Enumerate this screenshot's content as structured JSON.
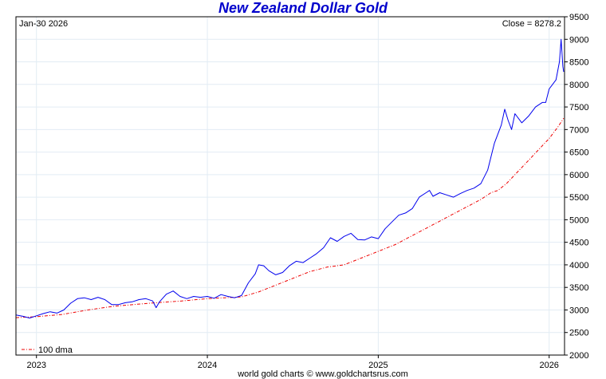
{
  "chart_data": {
    "type": "line",
    "title": "New Zealand Dollar Gold",
    "date_label": "Jan-30  2026",
    "close_label": "Close = 8278.2",
    "credit": "world gold charts © www.goldchartsrus.com",
    "legend_label": "100 dma",
    "legend_position": "bottom-left",
    "grid": true,
    "ylim": [
      2000,
      9500
    ],
    "xlim": [
      2022.88,
      2026.09
    ],
    "y_ticks": [
      2000,
      2500,
      3000,
      3500,
      4000,
      4500,
      5000,
      5500,
      6000,
      6500,
      7000,
      7500,
      8000,
      8500,
      9000,
      9500
    ],
    "x_ticks": [
      {
        "label": "2023",
        "value": 2023.0
      },
      {
        "label": "2024",
        "value": 2024.0
      },
      {
        "label": "2025",
        "value": 2025.0
      },
      {
        "label": "2026",
        "value": 2026.0
      }
    ],
    "colors": {
      "price": "#0000ee",
      "dma": "#ee0000",
      "grid": "#e2ecf4",
      "title": "#0000cc"
    },
    "series": [
      {
        "name": "NZD Gold",
        "x": [
          2022.88,
          2022.92,
          2022.96,
          2023.0,
          2023.04,
          2023.08,
          2023.12,
          2023.16,
          2023.2,
          2023.24,
          2023.28,
          2023.32,
          2023.36,
          2023.4,
          2023.44,
          2023.48,
          2023.52,
          2023.56,
          2023.6,
          2023.64,
          2023.68,
          2023.7,
          2023.72,
          2023.76,
          2023.8,
          2023.84,
          2023.88,
          2023.92,
          2023.96,
          2024.0,
          2024.04,
          2024.08,
          2024.12,
          2024.16,
          2024.2,
          2024.24,
          2024.28,
          2024.3,
          2024.33,
          2024.36,
          2024.4,
          2024.44,
          2024.48,
          2024.52,
          2024.56,
          2024.6,
          2024.64,
          2024.68,
          2024.72,
          2024.76,
          2024.8,
          2024.84,
          2024.88,
          2024.92,
          2024.96,
          2025.0,
          2025.04,
          2025.08,
          2025.12,
          2025.16,
          2025.2,
          2025.24,
          2025.28,
          2025.3,
          2025.32,
          2025.36,
          2025.4,
          2025.44,
          2025.48,
          2025.52,
          2025.56,
          2025.6,
          2025.64,
          2025.68,
          2025.72,
          2025.74,
          2025.76,
          2025.78,
          2025.8,
          2025.84,
          2025.88,
          2025.92,
          2025.96,
          2025.98,
          2026.0,
          2026.02,
          2026.04,
          2026.06,
          2026.07,
          2026.075,
          2026.08,
          2026.085
        ],
        "values": [
          2890,
          2860,
          2820,
          2870,
          2920,
          2960,
          2930,
          3000,
          3150,
          3250,
          3270,
          3230,
          3280,
          3230,
          3120,
          3120,
          3160,
          3180,
          3230,
          3250,
          3200,
          3050,
          3180,
          3350,
          3420,
          3300,
          3250,
          3300,
          3280,
          3300,
          3260,
          3340,
          3300,
          3270,
          3320,
          3600,
          3800,
          4000,
          3980,
          3870,
          3780,
          3830,
          3980,
          4080,
          4050,
          4150,
          4250,
          4380,
          4600,
          4520,
          4630,
          4700,
          4560,
          4550,
          4620,
          4580,
          4800,
          4950,
          5100,
          5150,
          5250,
          5500,
          5600,
          5650,
          5520,
          5600,
          5550,
          5500,
          5580,
          5650,
          5700,
          5800,
          6100,
          6700,
          7100,
          7450,
          7200,
          7000,
          7350,
          7150,
          7300,
          7500,
          7600,
          7600,
          7900,
          8000,
          8100,
          8500,
          9000,
          8700,
          8400,
          8278
        ]
      },
      {
        "name": "100 dma",
        "x": [
          2022.88,
          2023.0,
          2023.15,
          2023.3,
          2023.45,
          2023.6,
          2023.7,
          2023.85,
          2024.0,
          2024.1,
          2024.2,
          2024.3,
          2024.4,
          2024.5,
          2024.6,
          2024.7,
          2024.8,
          2024.9,
          2025.0,
          2025.1,
          2025.2,
          2025.3,
          2025.4,
          2025.5,
          2025.6,
          2025.66,
          2025.7,
          2025.75,
          2025.8,
          2025.85,
          2025.9,
          2025.95,
          2026.0,
          2026.05,
          2026.085
        ],
        "values": [
          2830,
          2850,
          2900,
          3000,
          3080,
          3130,
          3160,
          3200,
          3250,
          3270,
          3290,
          3400,
          3550,
          3700,
          3850,
          3950,
          4000,
          4150,
          4300,
          4450,
          4650,
          4850,
          5050,
          5250,
          5450,
          5600,
          5650,
          5800,
          6000,
          6200,
          6400,
          6600,
          6800,
          7050,
          7250
        ]
      }
    ]
  }
}
